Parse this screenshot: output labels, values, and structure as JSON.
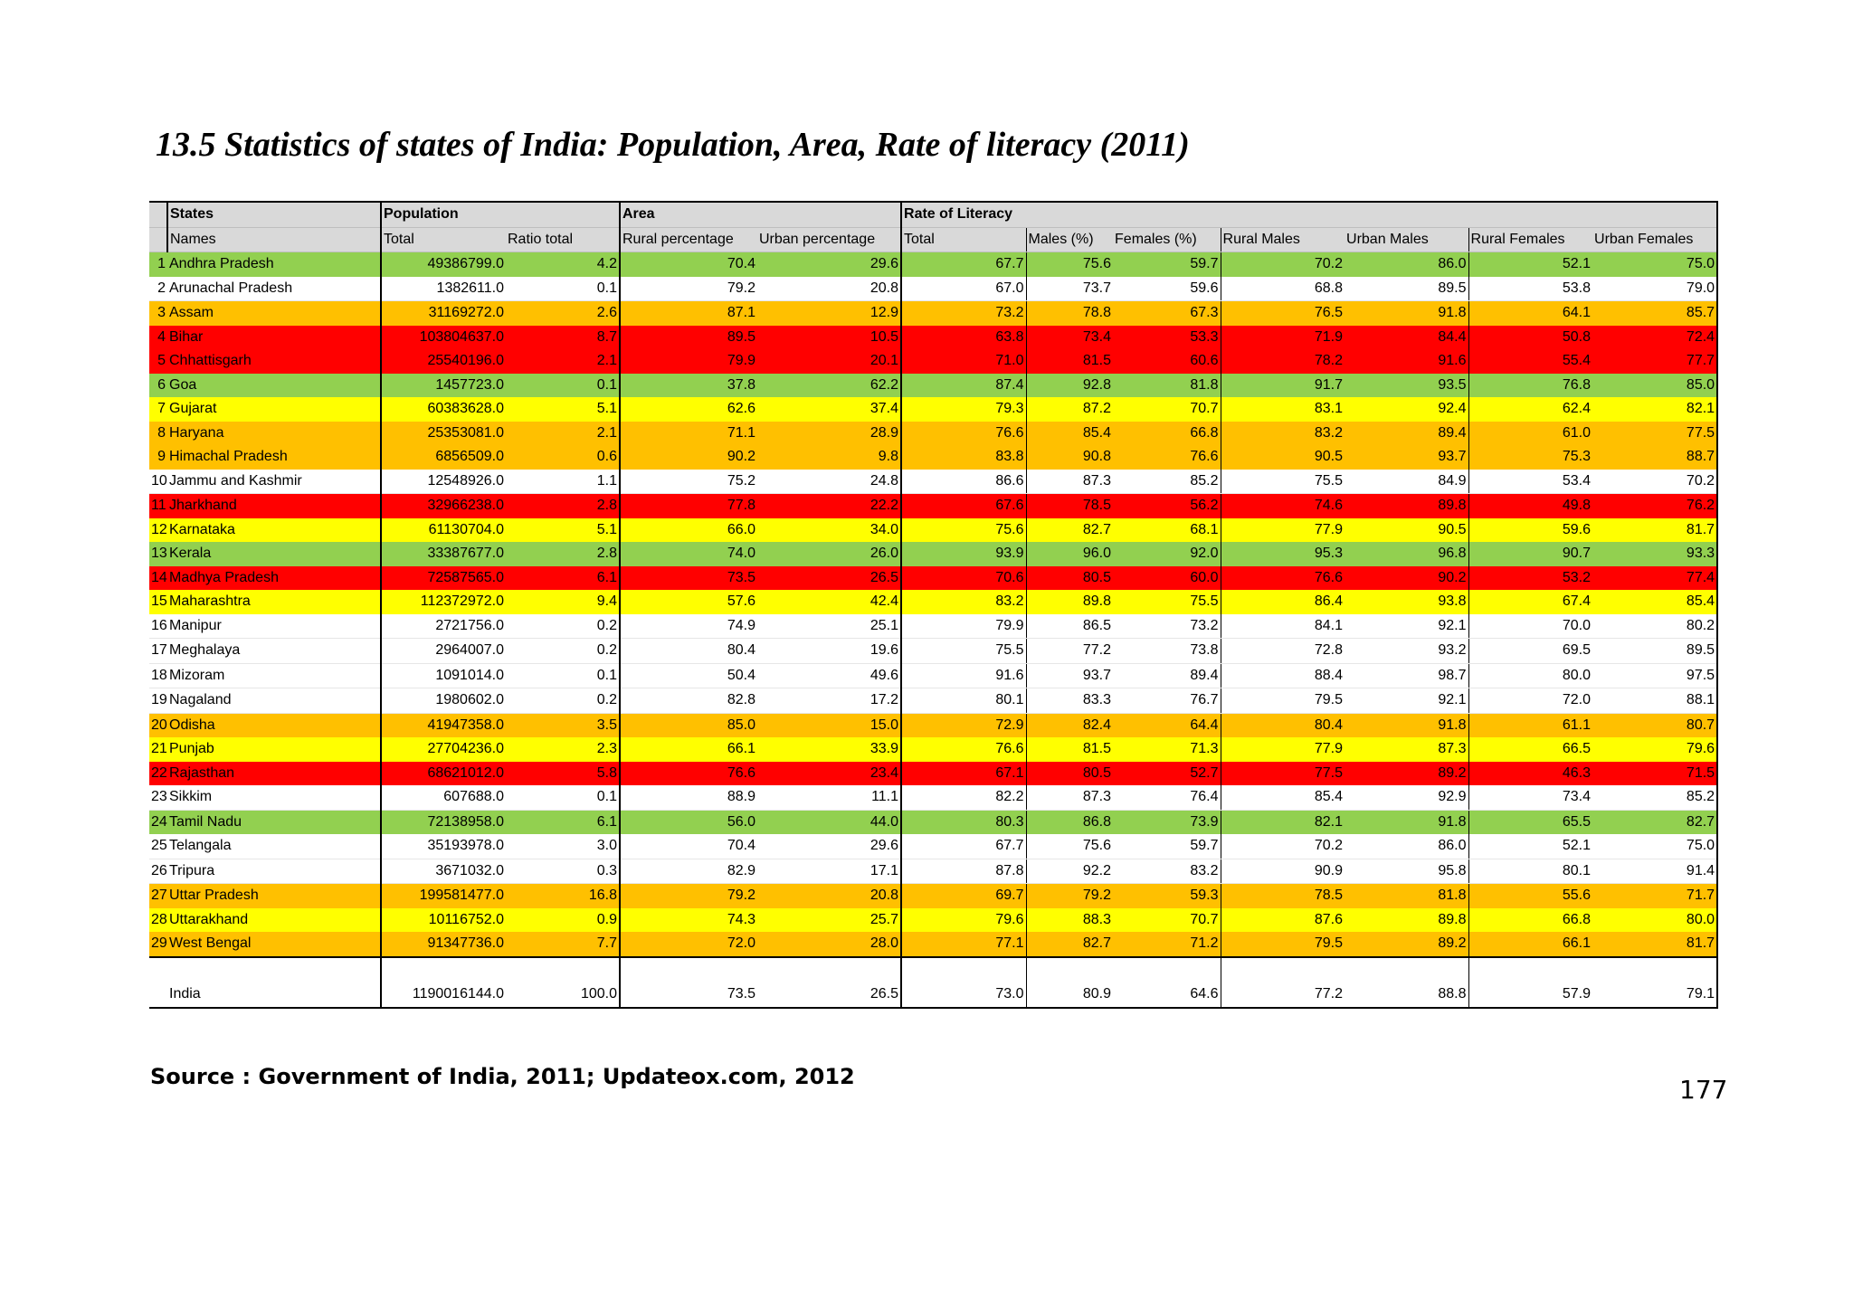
{
  "title": "13.5 Statistics of states of India: Population, Area, Rate of literacy (2011)",
  "table": {
    "group_headers": [
      "States",
      "Population",
      "Area",
      "Rate of Literacy"
    ],
    "column_headers": [
      "Names",
      "Total",
      "Ratio total",
      "Rural percentage",
      "Urban percentage",
      "Total",
      "Males (%)",
      "Females (%)",
      "Rural Males",
      "Urban Males",
      "Rural Females",
      "Urban Females"
    ],
    "row_colors": {
      "green": "#92d050",
      "yellow": "#ffff00",
      "orange": "#ffc000",
      "red": "#ff0000",
      "white": "#ffffff"
    },
    "rows": [
      {
        "no": "1",
        "name": "Andhra Pradesh",
        "color": "green",
        "values": [
          "49386799.0",
          "4.2",
          "70.4",
          "29.6",
          "67.7",
          "75.6",
          "59.7",
          "70.2",
          "86.0",
          "52.1",
          "75.0"
        ]
      },
      {
        "no": "2",
        "name": "Arunachal Pradesh",
        "color": "white",
        "values": [
          "1382611.0",
          "0.1",
          "79.2",
          "20.8",
          "67.0",
          "73.7",
          "59.6",
          "68.8",
          "89.5",
          "53.8",
          "79.0"
        ]
      },
      {
        "no": "3",
        "name": "Assam",
        "color": "orange",
        "values": [
          "31169272.0",
          "2.6",
          "87.1",
          "12.9",
          "73.2",
          "78.8",
          "67.3",
          "76.5",
          "91.8",
          "64.1",
          "85.7"
        ]
      },
      {
        "no": "4",
        "name": "Bihar",
        "color": "red",
        "values": [
          "103804637.0",
          "8.7",
          "89.5",
          "10.5",
          "63.8",
          "73.4",
          "53.3",
          "71.9",
          "84.4",
          "50.8",
          "72.4"
        ]
      },
      {
        "no": "5",
        "name": "Chhattisgarh",
        "color": "red",
        "values": [
          "25540196.0",
          "2.1",
          "79.9",
          "20.1",
          "71.0",
          "81.5",
          "60.6",
          "78.2",
          "91.6",
          "55.4",
          "77.7"
        ]
      },
      {
        "no": "6",
        "name": "Goa",
        "color": "green",
        "values": [
          "1457723.0",
          "0.1",
          "37.8",
          "62.2",
          "87.4",
          "92.8",
          "81.8",
          "91.7",
          "93.5",
          "76.8",
          "85.0"
        ]
      },
      {
        "no": "7",
        "name": "Gujarat",
        "color": "yellow",
        "values": [
          "60383628.0",
          "5.1",
          "62.6",
          "37.4",
          "79.3",
          "87.2",
          "70.7",
          "83.1",
          "92.4",
          "62.4",
          "82.1"
        ]
      },
      {
        "no": "8",
        "name": "Haryana",
        "color": "orange",
        "values": [
          "25353081.0",
          "2.1",
          "71.1",
          "28.9",
          "76.6",
          "85.4",
          "66.8",
          "83.2",
          "89.4",
          "61.0",
          "77.5"
        ]
      },
      {
        "no": "9",
        "name": "Himachal Pradesh",
        "color": "orange",
        "values": [
          "6856509.0",
          "0.6",
          "90.2",
          "9.8",
          "83.8",
          "90.8",
          "76.6",
          "90.5",
          "93.7",
          "75.3",
          "88.7"
        ]
      },
      {
        "no": "10",
        "name": "Jammu and Kashmir",
        "color": "white",
        "values": [
          "12548926.0",
          "1.1",
          "75.2",
          "24.8",
          "86.6",
          "87.3",
          "85.2",
          "75.5",
          "84.9",
          "53.4",
          "70.2"
        ]
      },
      {
        "no": "11",
        "name": "Jharkhand",
        "color": "red",
        "values": [
          "32966238.0",
          "2.8",
          "77.8",
          "22.2",
          "67.6",
          "78.5",
          "56.2",
          "74.6",
          "89.8",
          "49.8",
          "76.2"
        ]
      },
      {
        "no": "12",
        "name": "Karnataka",
        "color": "yellow",
        "values": [
          "61130704.0",
          "5.1",
          "66.0",
          "34.0",
          "75.6",
          "82.7",
          "68.1",
          "77.9",
          "90.5",
          "59.6",
          "81.7"
        ]
      },
      {
        "no": "13",
        "name": "Kerala",
        "color": "green",
        "values": [
          "33387677.0",
          "2.8",
          "74.0",
          "26.0",
          "93.9",
          "96.0",
          "92.0",
          "95.3",
          "96.8",
          "90.7",
          "93.3"
        ]
      },
      {
        "no": "14",
        "name": "Madhya Pradesh",
        "color": "red",
        "values": [
          "72587565.0",
          "6.1",
          "73.5",
          "26.5",
          "70.6",
          "80.5",
          "60.0",
          "76.6",
          "90.2",
          "53.2",
          "77.4"
        ]
      },
      {
        "no": "15",
        "name": "Maharashtra",
        "color": "yellow",
        "values": [
          "112372972.0",
          "9.4",
          "57.6",
          "42.4",
          "83.2",
          "89.8",
          "75.5",
          "86.4",
          "93.8",
          "67.4",
          "85.4"
        ]
      },
      {
        "no": "16",
        "name": "Manipur",
        "color": "white",
        "values": [
          "2721756.0",
          "0.2",
          "74.9",
          "25.1",
          "79.9",
          "86.5",
          "73.2",
          "84.1",
          "92.1",
          "70.0",
          "80.2"
        ]
      },
      {
        "no": "17",
        "name": "Meghalaya",
        "color": "white",
        "values": [
          "2964007.0",
          "0.2",
          "80.4",
          "19.6",
          "75.5",
          "77.2",
          "73.8",
          "72.8",
          "93.2",
          "69.5",
          "89.5"
        ]
      },
      {
        "no": "18",
        "name": "Mizoram",
        "color": "white",
        "values": [
          "1091014.0",
          "0.1",
          "50.4",
          "49.6",
          "91.6",
          "93.7",
          "89.4",
          "88.4",
          "98.7",
          "80.0",
          "97.5"
        ]
      },
      {
        "no": "19",
        "name": "Nagaland",
        "color": "white",
        "values": [
          "1980602.0",
          "0.2",
          "82.8",
          "17.2",
          "80.1",
          "83.3",
          "76.7",
          "79.5",
          "92.1",
          "72.0",
          "88.1"
        ]
      },
      {
        "no": "20",
        "name": "Odisha",
        "color": "orange",
        "values": [
          "41947358.0",
          "3.5",
          "85.0",
          "15.0",
          "72.9",
          "82.4",
          "64.4",
          "80.4",
          "91.8",
          "61.1",
          "80.7"
        ]
      },
      {
        "no": "21",
        "name": "Punjab",
        "color": "yellow",
        "values": [
          "27704236.0",
          "2.3",
          "66.1",
          "33.9",
          "76.6",
          "81.5",
          "71.3",
          "77.9",
          "87.3",
          "66.5",
          "79.6"
        ]
      },
      {
        "no": "22",
        "name": "Rajasthan",
        "color": "red",
        "values": [
          "68621012.0",
          "5.8",
          "76.6",
          "23.4",
          "67.1",
          "80.5",
          "52.7",
          "77.5",
          "89.2",
          "46.3",
          "71.5"
        ]
      },
      {
        "no": "23",
        "name": "Sikkim",
        "color": "white",
        "values": [
          "607688.0",
          "0.1",
          "88.9",
          "11.1",
          "82.2",
          "87.3",
          "76.4",
          "85.4",
          "92.9",
          "73.4",
          "85.2"
        ]
      },
      {
        "no": "24",
        "name": "Tamil Nadu",
        "color": "green",
        "values": [
          "72138958.0",
          "6.1",
          "56.0",
          "44.0",
          "80.3",
          "86.8",
          "73.9",
          "82.1",
          "91.8",
          "65.5",
          "82.7"
        ]
      },
      {
        "no": "25",
        "name": "Telangala",
        "color": "white",
        "values": [
          "35193978.0",
          "3.0",
          "70.4",
          "29.6",
          "67.7",
          "75.6",
          "59.7",
          "70.2",
          "86.0",
          "52.1",
          "75.0"
        ]
      },
      {
        "no": "26",
        "name": "Tripura",
        "color": "white",
        "values": [
          "3671032.0",
          "0.3",
          "82.9",
          "17.1",
          "87.8",
          "92.2",
          "83.2",
          "90.9",
          "95.8",
          "80.1",
          "91.4"
        ]
      },
      {
        "no": "27",
        "name": "Uttar Pradesh",
        "color": "orange",
        "values": [
          "199581477.0",
          "16.8",
          "79.2",
          "20.8",
          "69.7",
          "79.2",
          "59.3",
          "78.5",
          "81.8",
          "55.6",
          "71.7"
        ]
      },
      {
        "no": "28",
        "name": "Uttarakhand",
        "color": "yellow",
        "values": [
          "10116752.0",
          "0.9",
          "74.3",
          "25.7",
          "79.6",
          "88.3",
          "70.7",
          "87.6",
          "89.8",
          "66.8",
          "80.0"
        ]
      },
      {
        "no": "29",
        "name": "West Bengal",
        "color": "orange",
        "values": [
          "91347736.0",
          "7.7",
          "72.0",
          "28.0",
          "77.1",
          "82.7",
          "71.2",
          "79.5",
          "89.2",
          "66.1",
          "81.7"
        ]
      }
    ],
    "total_row": {
      "name": "India",
      "values": [
        "1190016144.0",
        "100.0",
        "73.5",
        "26.5",
        "73.0",
        "80.9",
        "64.6",
        "77.2",
        "88.8",
        "57.9",
        "79.1"
      ]
    }
  },
  "source": "Source : Government of India, 2011; Updateox.com, 2012",
  "page_number": "177"
}
